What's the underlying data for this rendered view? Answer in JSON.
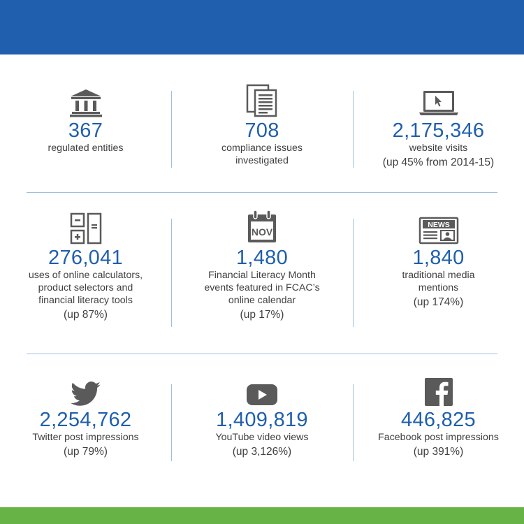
{
  "stats": {
    "row1": [
      {
        "icon": "bank-building-icon",
        "number": "367",
        "caption": "regulated entities",
        "change": ""
      },
      {
        "icon": "documents-icon",
        "number": "708",
        "caption": "compliance issues\ninvestigated",
        "change": ""
      },
      {
        "icon": "laptop-cursor-icon",
        "number": "2,175,346",
        "caption": "website visits",
        "change": "(up 45% from 2014-15)"
      }
    ],
    "row2": [
      {
        "icon": "calculator-icon",
        "number": "276,041",
        "caption": "uses of online calculators,\nproduct selectors and\nfinancial literacy tools",
        "change": "(up 87%)"
      },
      {
        "icon": "calendar-nov-icon",
        "icon_text": "NOV",
        "number": "1,480",
        "caption": "Financial Literacy Month\nevents featured in FCAC’s\nonline calendar",
        "change": "(up 17%)"
      },
      {
        "icon": "newspaper-icon",
        "icon_text": "NEWS",
        "number": "1,840",
        "caption": "traditional media\nmentions",
        "change": "(up 174%)"
      }
    ],
    "row3": [
      {
        "icon": "twitter-bird-icon",
        "number": "2,254,762",
        "caption": "Twitter post impressions",
        "change": "(up 79%)"
      },
      {
        "icon": "youtube-play-icon",
        "number": "1,409,819",
        "caption": "YouTube video views",
        "change": "(up 3,126%)"
      },
      {
        "icon": "facebook-f-icon",
        "number": "446,825",
        "caption": "Facebook post impressions",
        "change": "(up 391%)"
      }
    ]
  },
  "colors": {
    "header_band": "#1f5fae",
    "footer_band": "#67b346",
    "number_text": "#1f5fae",
    "caption_text": "#3f3f3f",
    "icon_fill": "#5a5a5a",
    "divider": "#9ec0dd"
  }
}
